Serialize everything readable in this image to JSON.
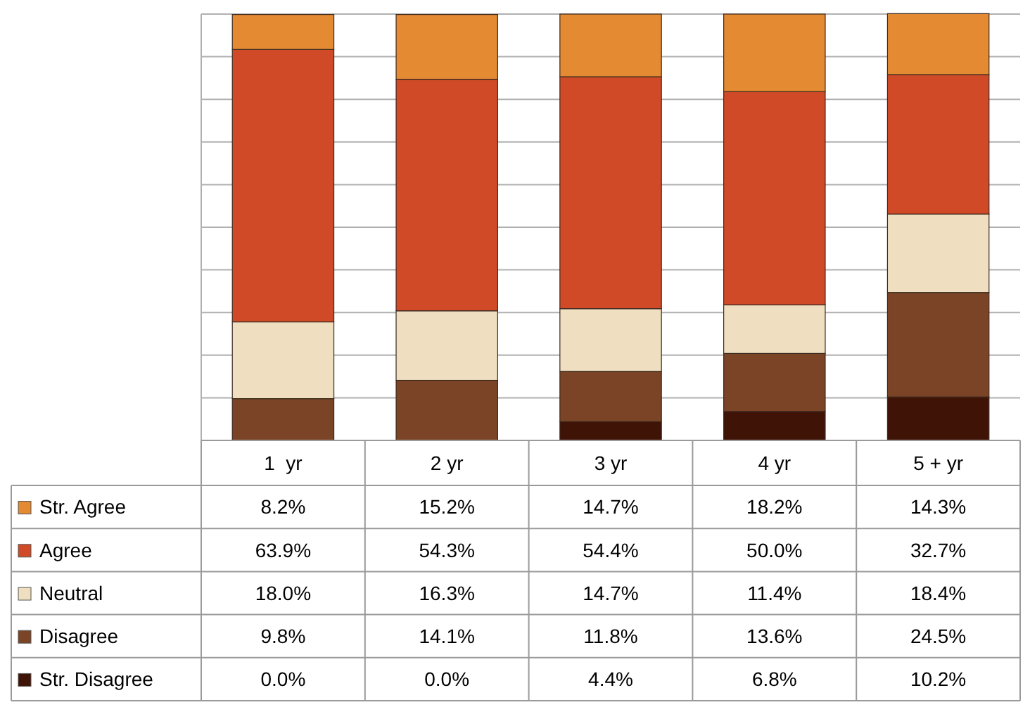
{
  "chart_data": {
    "type": "bar",
    "stacked": true,
    "categories": [
      "1  yr",
      "2 yr",
      "3 yr",
      "4 yr",
      "5 + yr"
    ],
    "ylim": [
      0,
      100
    ],
    "yticks": [
      {
        "value": 0,
        "label": null
      },
      {
        "value": 10,
        "label": null
      },
      {
        "value": 20,
        "label": null
      },
      {
        "value": 30,
        "label": null
      },
      {
        "value": 40,
        "label": null
      },
      {
        "value": 50,
        "label": null
      },
      {
        "value": 60,
        "label": null
      },
      {
        "value": 70,
        "label": null
      },
      {
        "value": 80,
        "label": null
      },
      {
        "value": 90,
        "label": null
      },
      {
        "value": 100,
        "label": null
      }
    ],
    "grid": "y",
    "tick_labels": "x",
    "legend": "bottom left",
    "series": [
      {
        "name": "Str. Disagree",
        "color": "#3f1305",
        "values": [
          0.0,
          0.0,
          4.4,
          6.8,
          10.2
        ],
        "value_labels": [
          "0.0%",
          "0.0%",
          "4.4%",
          "6.8%",
          "10.2%"
        ]
      },
      {
        "name": "Disagree",
        "color": "#7b4426",
        "values": [
          9.8,
          14.1,
          11.8,
          13.6,
          24.5
        ],
        "value_labels": [
          "9.8%",
          "14.1%",
          "11.8%",
          "13.6%",
          "24.5%"
        ]
      },
      {
        "name": "Neutral",
        "color": "#efdfc0",
        "values": [
          18.0,
          16.3,
          14.7,
          11.4,
          18.4
        ],
        "value_labels": [
          "18.0%",
          "16.3%",
          "14.7%",
          "11.4%",
          "18.4%"
        ]
      },
      {
        "name": "Agree",
        "color": "#d04a27",
        "values": [
          63.9,
          54.3,
          54.4,
          50.0,
          32.7
        ],
        "value_labels": [
          "63.9%",
          "54.3%",
          "54.4%",
          "50.0%",
          "32.7%"
        ]
      },
      {
        "name": "Str. Agree",
        "color": "#e48a32",
        "values": [
          8.2,
          15.2,
          14.7,
          18.2,
          14.3
        ],
        "value_labels": [
          "8.2%",
          "15.2%",
          "14.7%",
          "18.2%",
          "14.3%"
        ]
      }
    ]
  }
}
